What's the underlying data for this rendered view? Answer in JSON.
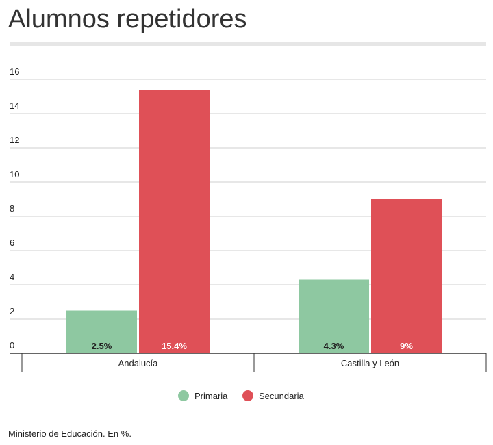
{
  "title": "Alumnos repetidores",
  "source": "Ministerio de Educación. En %.",
  "colors": {
    "primaria": "#8ec8a1",
    "secundaria": "#df5057",
    "grid": "#cfcfcf",
    "axis": "#333333"
  },
  "chart_data": {
    "type": "bar",
    "title": "Alumnos repetidores",
    "categories": [
      "Andalucía",
      "Castilla y León"
    ],
    "series": [
      {
        "name": "Primaria",
        "values": [
          2.5,
          4.3
        ],
        "labels": [
          "2.5%",
          "4.3%"
        ],
        "color": "#8ec8a1"
      },
      {
        "name": "Secundaria",
        "values": [
          15.4,
          9
        ],
        "labels": [
          "15.4%",
          "9%"
        ],
        "color": "#df5057"
      }
    ],
    "y_ticks": [
      "0",
      "2",
      "4",
      "6",
      "8",
      "10",
      "12",
      "14",
      "16"
    ],
    "ylim": [
      0,
      16
    ],
    "grid": true,
    "legend": "bottom-center",
    "xlabel": "",
    "ylabel": ""
  }
}
